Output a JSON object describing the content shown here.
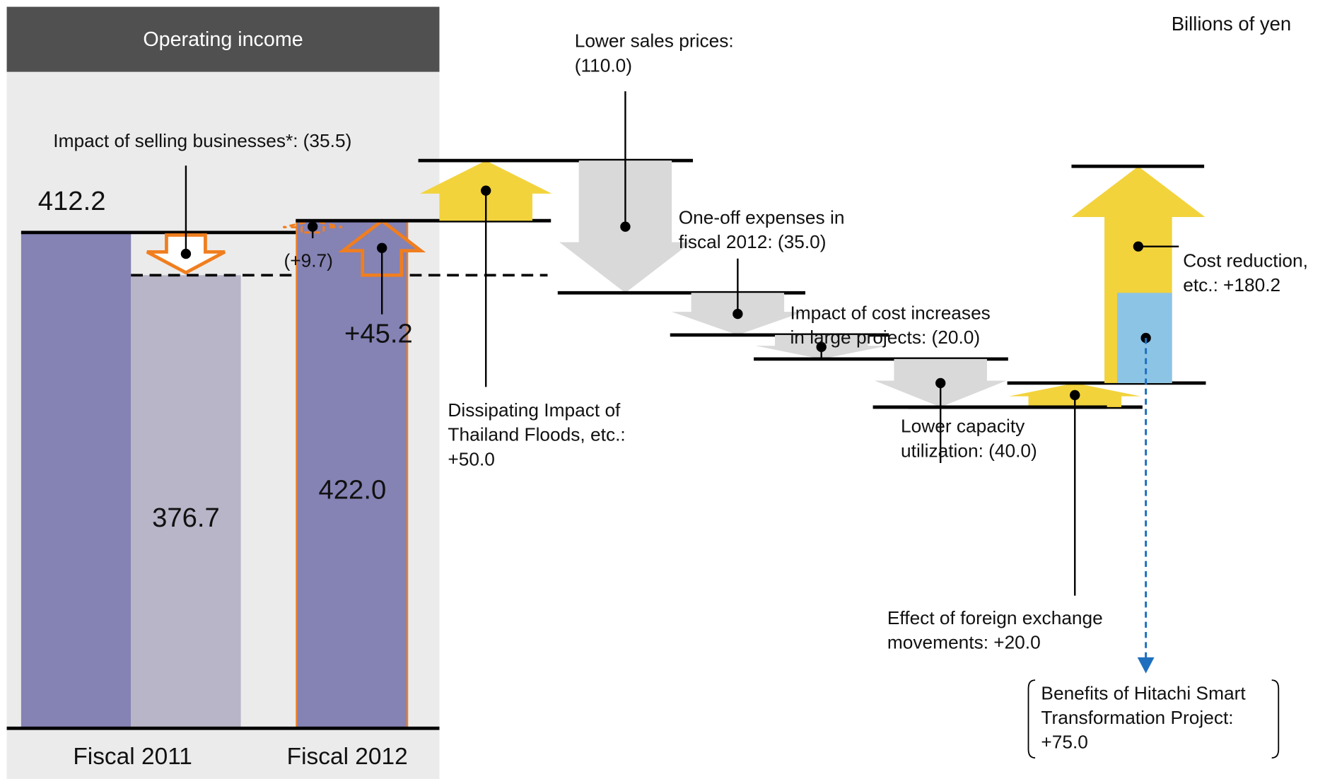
{
  "chart_data": {
    "type": "waterfall",
    "title": "Operating income",
    "unit": "Billions of yen",
    "colors": {
      "fiscal": "#8582b4",
      "adjusted": "#b8b5c8",
      "increase": "#f2d33c",
      "decrease": "#d9d9d9",
      "hitachi": "#8cc4e6",
      "orange": "#f07e1f"
    },
    "fiscal_2011": {
      "category": "Fiscal 2011",
      "value": 412.2
    },
    "divestiture": {
      "name": "Impact of selling businesses*:",
      "value": -35.5,
      "value_label": "(35.5)",
      "result": 376.7
    },
    "comparable": {
      "value": 9.7,
      "value_label": "(+9.7)"
    },
    "growth": {
      "value": 45.2,
      "value_label": "+45.2"
    },
    "fiscal_2012": {
      "category": "Fiscal 2012",
      "value": 422.0,
      "value_label": "422.0"
    },
    "steps": [
      {
        "name": [
          "Dissipating Impact of",
          "Thailand Floods, etc.:"
        ],
        "value": 50.0,
        "value_label": "+50.0"
      },
      {
        "name": [
          "Lower sales prices:"
        ],
        "value": -110.0,
        "value_label": "(110.0)"
      },
      {
        "name": [
          "One-off expenses in",
          "fiscal 2012:"
        ],
        "value": -35.0,
        "value_label": "(35.0)"
      },
      {
        "name": [
          "Impact of cost increases",
          "in large projects:"
        ],
        "value": -20.0,
        "value_label": "(20.0)"
      },
      {
        "name": [
          "Lower capacity",
          "utilization:"
        ],
        "value": -40.0,
        "value_label": "(40.0)"
      },
      {
        "name": [
          "Effect of foreign exchange",
          "movements:"
        ],
        "value": 20.0,
        "value_label": "+20.0"
      },
      {
        "name": [
          "Cost reduction,",
          "etc.:"
        ],
        "value": 180.2,
        "value_label": "+180.2",
        "detail": {
          "name": [
            "Benefits of Hitachi Smart",
            "Transformation Project:"
          ],
          "value": 75.0,
          "value_label": "+75.0"
        }
      }
    ]
  }
}
